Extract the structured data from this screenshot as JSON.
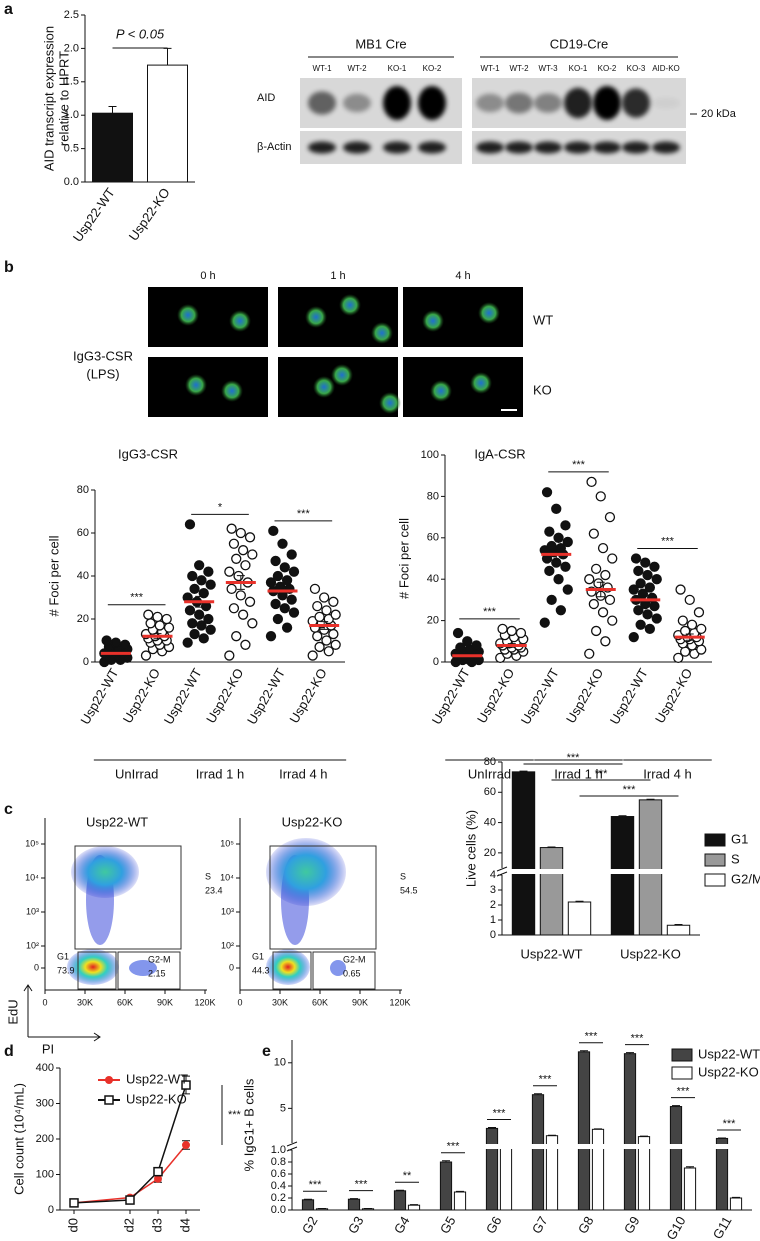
{
  "panel_labels": [
    "a",
    "b",
    "c",
    "d",
    "e"
  ],
  "blot": {
    "groups": [
      {
        "title": "MB1 Cre",
        "lanes": [
          "WT-1",
          "WT-2",
          "KO-1",
          "KO-2"
        ]
      },
      {
        "title": "CD19-Cre",
        "lanes": [
          "WT-1",
          "WT-2",
          "WT-3",
          "KO-1",
          "KO-2",
          "KO-3",
          "AID-KO"
        ]
      }
    ],
    "rows": [
      "AID",
      "β-Actin"
    ],
    "marker": "20 kDa"
  },
  "micrographs": {
    "columns": [
      "0 h",
      "1 h",
      "4 h"
    ],
    "rows": [
      "WT",
      "KO"
    ],
    "condition": [
      "IgG3-CSR",
      "(LPS)"
    ]
  },
  "flow": {
    "ylabel": "EdU",
    "xlabel": "PI",
    "xticks": [
      0,
      {
        "value": 30000,
        "label": "30K"
      },
      {
        "value": 60000,
        "label": "60K"
      },
      {
        "value": 90000,
        "label": "90K"
      },
      {
        "value": 120000,
        "label": "120K"
      }
    ],
    "yticks": [
      0,
      {
        "value": 100,
        "label": "10²"
      },
      {
        "value": 1000,
        "label": "10³"
      },
      {
        "value": 10000,
        "label": "10⁴"
      },
      {
        "value": 100000,
        "label": "10⁵"
      }
    ],
    "plots": [
      {
        "title": "Usp22-WT",
        "gates": [
          {
            "name": "S",
            "value": 23.4
          },
          {
            "name": "G1",
            "value": 73.9
          },
          {
            "name": "G2-M",
            "value": 2.15
          }
        ]
      },
      {
        "title": "Usp22-KO",
        "gates": [
          {
            "name": "S",
            "value": 54.5
          },
          {
            "name": "G1",
            "value": 44.3
          },
          {
            "name": "G2-M",
            "value": 0.65
          }
        ]
      }
    ]
  },
  "chart_data": [
    {
      "type": "bar",
      "ylabel": [
        "AID transcript expression",
        "relative to HPRT"
      ],
      "categories": [
        "Usp22-WT",
        "Usp22-KO"
      ],
      "values": [
        1.03,
        1.75
      ],
      "errors": [
        0.1,
        0.25
      ],
      "colors": [
        "#111111",
        "#ffffff"
      ],
      "ylim": [
        0,
        2.5
      ],
      "yticks": [
        {
          "value": 0,
          "label": "0.0"
        },
        0.5,
        {
          "value": 1,
          "label": "1.0"
        },
        1.5,
        {
          "value": 2,
          "label": "2.0"
        },
        2.5
      ],
      "annotation": "P < 0.05"
    },
    {
      "type": "strip",
      "title": "IgG3-CSR",
      "ylabel": "# Foci per cell",
      "categories": [
        "Usp22-WT",
        "Usp22-KO",
        "Usp22-WT",
        "Usp22-KO",
        "Usp22-WT",
        "Usp22-KO"
      ],
      "points": [
        [
          0,
          1,
          1,
          2,
          2,
          2,
          3,
          3,
          3,
          4,
          4,
          4,
          5,
          5,
          6,
          6,
          7,
          8,
          9,
          10
        ],
        [
          3,
          5,
          6,
          7,
          8,
          9,
          10,
          10,
          11,
          12,
          12,
          13,
          14,
          15,
          16,
          17,
          18,
          20,
          21,
          22
        ],
        [
          9,
          11,
          13,
          15,
          17,
          18,
          20,
          22,
          24,
          26,
          28,
          30,
          32,
          34,
          36,
          38,
          40,
          42,
          45,
          64
        ],
        [
          3,
          8,
          12,
          18,
          22,
          25,
          28,
          31,
          34,
          37,
          40,
          42,
          45,
          48,
          50,
          52,
          55,
          58,
          60,
          62
        ],
        [
          12,
          16,
          20,
          23,
          25,
          27,
          29,
          31,
          33,
          34,
          35,
          37,
          38,
          40,
          42,
          44,
          47,
          50,
          55,
          61
        ],
        [
          3,
          5,
          7,
          8,
          10,
          12,
          13,
          15,
          16,
          17,
          18,
          19,
          20,
          21,
          22,
          24,
          26,
          28,
          30,
          34
        ]
      ],
      "values": [
        4,
        12,
        28,
        37,
        33,
        17
      ],
      "errors": [
        0.6,
        1.2,
        2.5,
        3.2,
        2.2,
        1.8
      ],
      "mean_color": "#e8312a",
      "ylim": [
        0,
        80
      ],
      "yticks": [
        0,
        20,
        40,
        60,
        80
      ],
      "significance": [
        "***",
        "*",
        "***"
      ],
      "groups": [
        "UnIrrad",
        "Irrad 1 h",
        "Irrad 4 h"
      ]
    },
    {
      "type": "strip",
      "title": "IgA-CSR",
      "ylabel": "# Foci per cell",
      "categories": [
        "Usp22-WT",
        "Usp22-KO",
        "Usp22-WT",
        "Usp22-KO",
        "Usp22-WT",
        "Usp22-KO"
      ],
      "points": [
        [
          0,
          0,
          1,
          1,
          1,
          2,
          2,
          2,
          3,
          3,
          3,
          4,
          4,
          5,
          5,
          6,
          7,
          8,
          10,
          14
        ],
        [
          2,
          3,
          4,
          5,
          6,
          6,
          7,
          7,
          8,
          8,
          9,
          9,
          10,
          10,
          11,
          12,
          13,
          14,
          15,
          16
        ],
        [
          19,
          25,
          30,
          35,
          40,
          44,
          46,
          48,
          50,
          52,
          53,
          54,
          55,
          56,
          58,
          60,
          63,
          66,
          74,
          82
        ],
        [
          4,
          10,
          15,
          20,
          24,
          28,
          30,
          32,
          34,
          36,
          38,
          40,
          42,
          45,
          50,
          55,
          62,
          70,
          80,
          87
        ],
        [
          12,
          16,
          18,
          21,
          23,
          25,
          27,
          28,
          30,
          31,
          33,
          35,
          36,
          38,
          40,
          42,
          44,
          46,
          48,
          50
        ],
        [
          2,
          4,
          5,
          6,
          8,
          9,
          10,
          11,
          11,
          12,
          12,
          13,
          14,
          15,
          16,
          18,
          20,
          24,
          30,
          35
        ]
      ],
      "values": [
        3,
        8,
        52,
        35,
        30,
        12
      ],
      "errors": [
        0.8,
        0.9,
        2.8,
        3.5,
        2,
        1.5
      ],
      "mean_color": "#e8312a",
      "ylim": [
        0,
        100
      ],
      "yticks": [
        0,
        20,
        40,
        60,
        80,
        100
      ],
      "significance": [
        "***",
        "***",
        "***"
      ],
      "groups": [
        "UnIrrad",
        "Irrad 1 h",
        "Irrad 4 h"
      ]
    },
    {
      "type": "bar",
      "ylabel": "Live cells (%)",
      "categories": [
        "Usp22-WT",
        "Usp22-KO"
      ],
      "series": [
        {
          "name": "G1",
          "color": "#111111",
          "values": [
            73.5,
            44
          ],
          "errors": [
            0.5,
            0.5
          ]
        },
        {
          "name": "S",
          "color": "#999999",
          "values": [
            23.5,
            55
          ],
          "errors": [
            0.4,
            0.4
          ]
        },
        {
          "name": "G2/M",
          "color": "#ffffff",
          "values": [
            2.2,
            0.65
          ],
          "errors": [
            0.05,
            0.05
          ]
        }
      ],
      "segments": [
        {
          "ylim": [
            0,
            4
          ],
          "yticks": [
            0,
            1,
            2,
            3,
            4
          ]
        },
        {
          "ylim": [
            10,
            80
          ],
          "yticks": [
            20,
            40,
            60,
            80
          ]
        }
      ],
      "significance": [
        "***",
        "***",
        "***"
      ]
    },
    {
      "type": "line",
      "ylabel": "Cell count (10⁴/mL)",
      "x": [
        0,
        2,
        3,
        4
      ],
      "xlim": [
        -0.5,
        4.5
      ],
      "xticks": [
        {
          "value": 0,
          "label": "d0"
        },
        {
          "value": 2,
          "label": "d2"
        },
        {
          "value": 3,
          "label": "d3"
        },
        {
          "value": 4,
          "label": "d4"
        }
      ],
      "series": [
        {
          "name": "Usp22-WT",
          "color": "#e8312a",
          "marker": "circle",
          "values": [
            20,
            35,
            88,
            183
          ],
          "errors": [
            3,
            4,
            10,
            12
          ]
        },
        {
          "name": "Usp22-KO",
          "color": "#111111",
          "marker": "open-square",
          "values": [
            20,
            28,
            108,
            352
          ],
          "errors": [
            2,
            3,
            8,
            25
          ]
        }
      ],
      "ylim": [
        0,
        400
      ],
      "yticks": [
        0,
        100,
        200,
        300,
        400
      ],
      "significance": "***"
    },
    {
      "type": "bar",
      "ylabel": "% IgG1+ B cells",
      "categories": [
        "G2",
        "G3",
        "G4",
        "G5",
        "G6",
        "G7",
        "G8",
        "G9",
        "G10",
        "G11"
      ],
      "series": [
        {
          "name": "Usp22-WT",
          "color": "#444444",
          "values": [
            0.17,
            0.18,
            0.32,
            0.8,
            2.8,
            6.5,
            11.2,
            11,
            5.2,
            1.7
          ],
          "errors": [
            0.01,
            0.01,
            0.01,
            0.02,
            0.1,
            0.1,
            0.12,
            0.12,
            0.1,
            0.05
          ]
        },
        {
          "name": "Usp22-KO",
          "color": "#ffffff",
          "values": [
            0.02,
            0.02,
            0.08,
            0.3,
            1.1,
            2,
            2.7,
            1.9,
            0.7,
            0.2
          ],
          "errors": [
            0.005,
            0.005,
            0.01,
            0.01,
            0.03,
            0.05,
            0.05,
            0.05,
            0.02,
            0.01
          ]
        }
      ],
      "segments": [
        {
          "ylim": [
            0,
            1
          ],
          "yticks": [
            {
              "value": 0,
              "label": "0.0"
            },
            0.2,
            0.4,
            0.6,
            0.8,
            {
              "value": 1,
              "label": "1.0"
            }
          ]
        },
        {
          "ylim": [
            1.2,
            12.5
          ],
          "yticks": [
            5,
            10
          ]
        }
      ],
      "significance": [
        "***",
        "***",
        "**",
        "***",
        "***",
        "***",
        "***",
        "***",
        "***",
        "***"
      ]
    }
  ]
}
